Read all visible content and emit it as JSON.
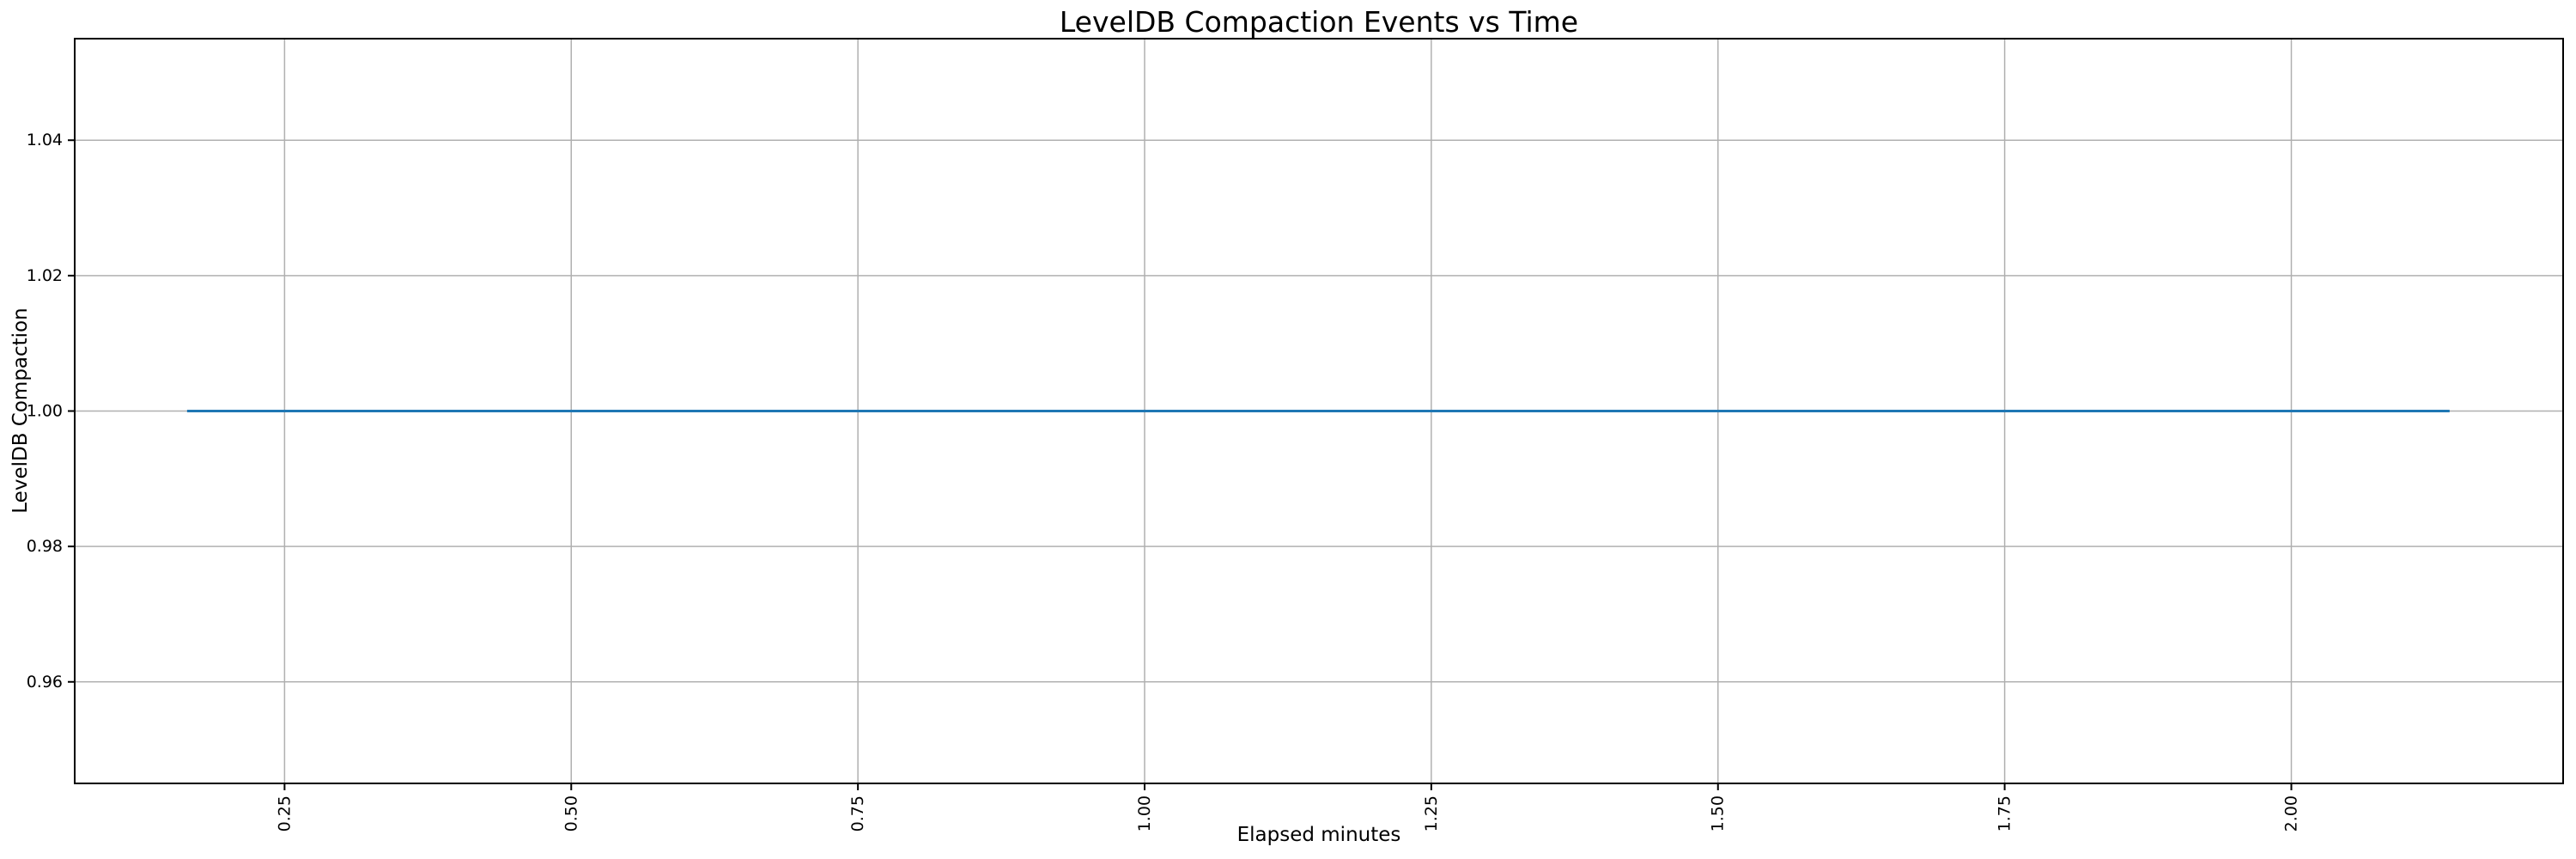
{
  "figure": {
    "title": "LevelDB Compaction Events vs Time",
    "xlabel": "Elapsed minutes",
    "ylabel": "LevelDB Compaction"
  },
  "chart_data": {
    "type": "line",
    "title": "LevelDB Compaction Events vs Time",
    "xlabel": "Elapsed minutes",
    "ylabel": "LevelDB Compaction",
    "xlim": [
      0.067,
      2.237
    ],
    "ylim": [
      0.945,
      1.055
    ],
    "x_ticks": [
      0.25,
      0.5,
      0.75,
      1.0,
      1.25,
      1.5,
      1.75,
      2.0
    ],
    "x_tick_labels": [
      "0.25",
      "0.50",
      "0.75",
      "1.00",
      "1.25",
      "1.50",
      "1.75",
      "2.00"
    ],
    "x_tick_rotation": 90,
    "y_ticks": [
      0.96,
      0.98,
      1.0,
      1.02,
      1.04
    ],
    "y_tick_labels": [
      "0.96",
      "0.98",
      "1.00",
      "1.02",
      "1.04"
    ],
    "grid": true,
    "legend": false,
    "series": [
      {
        "name": "LevelDB Compaction",
        "color": "#1f77b4",
        "x": [
          0.165,
          2.138
        ],
        "y": [
          1.0,
          1.0
        ],
        "description": "constant value 1.0 from ~0.165 to ~2.138 elapsed minutes"
      }
    ],
    "colors": {
      "line": "#1f77b4",
      "grid": "#b0b0b0",
      "spine": "#000000",
      "text": "#000000",
      "background": "#ffffff"
    }
  }
}
